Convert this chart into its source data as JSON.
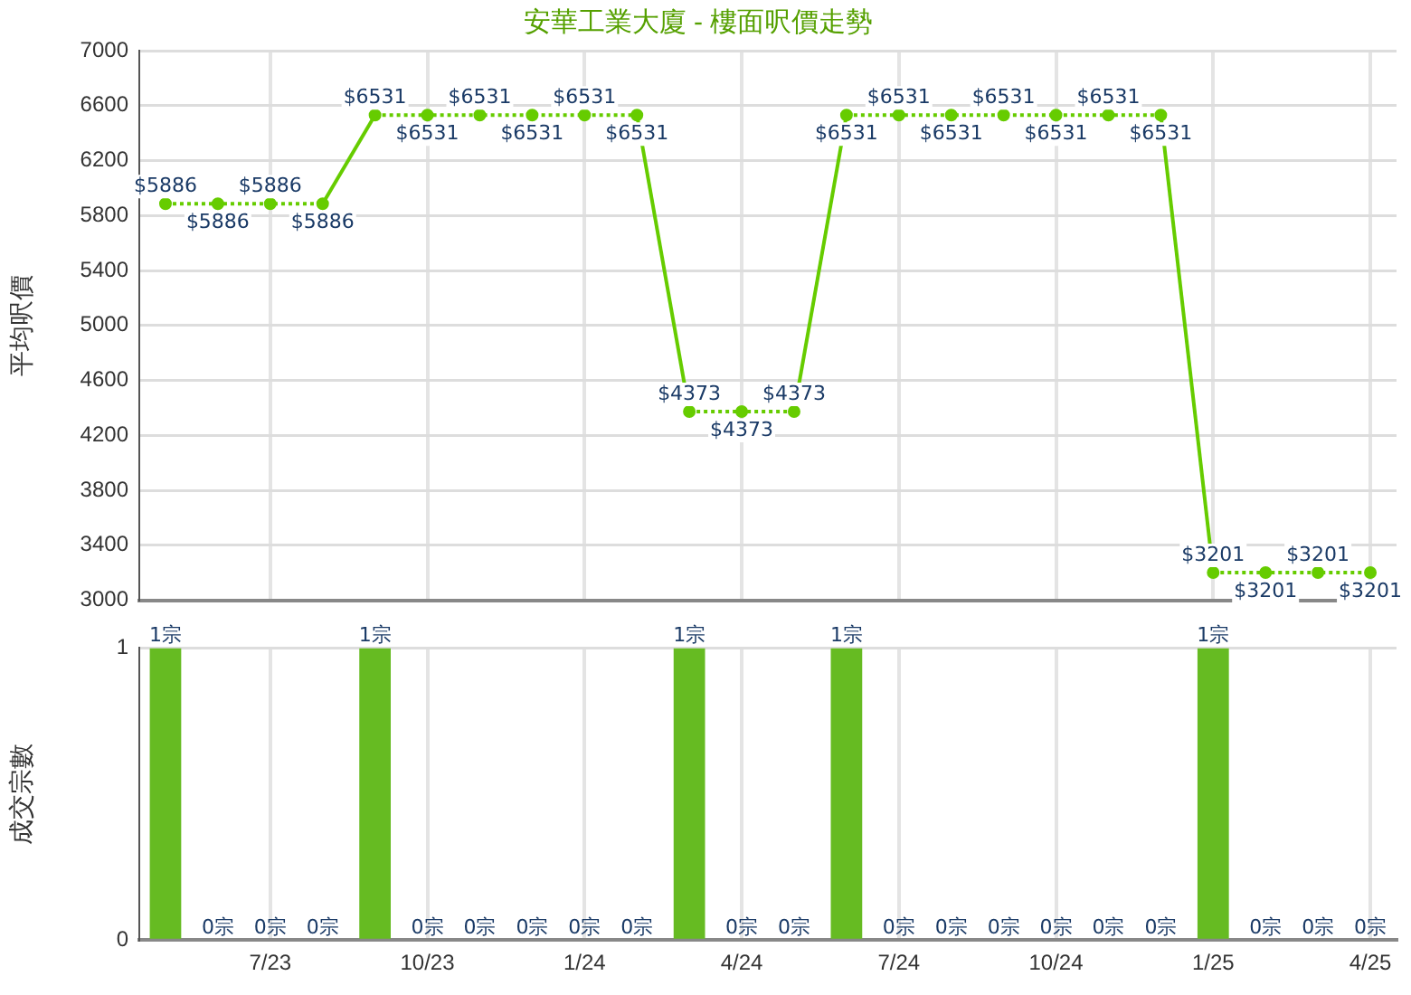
{
  "chart_data": [
    {
      "type": "line",
      "title": "安華工業大廈 - 樓面呎價走勢",
      "ylabel": "平均呎價",
      "categories": [
        null,
        null,
        null,
        null,
        null,
        null,
        null,
        null,
        null,
        null,
        null,
        null,
        null,
        null,
        null,
        null,
        null,
        null,
        null,
        null,
        null,
        null,
        null,
        null
      ],
      "series": [
        {
          "color": "#66cc00",
          "values": [
            5886,
            5886,
            5886,
            5886,
            6531,
            6531,
            6531,
            6531,
            6531,
            6531,
            4373,
            4373,
            4373,
            6531,
            6531,
            6531,
            6531,
            6531,
            6531,
            6531,
            3201,
            3201,
            3201,
            3201
          ],
          "value_labels": [
            "$5886",
            "$5886",
            "$5886",
            "$5886",
            "$6531",
            "$6531",
            "$6531",
            "$6531",
            "$6531",
            "$6531",
            "$4373",
            "$4373",
            "$4373",
            "$6531",
            "$6531",
            "$6531",
            "$6531",
            "$6531",
            "$6531",
            "$6531",
            "$3201",
            "$3201",
            "$3201",
            "$3201"
          ]
        }
      ],
      "ylim": [
        3000,
        7000
      ],
      "yticks": [
        3000,
        3400,
        3800,
        4200,
        4600,
        5000,
        5400,
        5800,
        6200,
        6600,
        7000
      ],
      "grid": true,
      "legend": false,
      "marker": "circle",
      "tick_labels": "y"
    },
    {
      "type": "bar",
      "ylabel": "成交宗數",
      "categories": [
        null,
        null,
        "7/23",
        null,
        null,
        "10/23",
        null,
        null,
        "1/24",
        null,
        null,
        "4/24",
        null,
        null,
        "7/24",
        null,
        null,
        "10/24",
        null,
        null,
        "1/25",
        null,
        null,
        "4/25"
      ],
      "series": [
        {
          "color": "#66bb22",
          "values": [
            1,
            0,
            0,
            0,
            1,
            0,
            0,
            0,
            0,
            0,
            1,
            0,
            0,
            1,
            0,
            0,
            0,
            0,
            0,
            0,
            1,
            0,
            0,
            0
          ],
          "value_labels": [
            "1宗",
            "0宗",
            "0宗",
            "0宗",
            "1宗",
            "0宗",
            "0宗",
            "0宗",
            "0宗",
            "0宗",
            "1宗",
            "0宗",
            "0宗",
            "1宗",
            "0宗",
            "0宗",
            "0宗",
            "0宗",
            "0宗",
            "0宗",
            "1宗",
            "0宗",
            "0宗",
            "0宗"
          ]
        }
      ],
      "ylim": [
        0,
        1
      ],
      "yticks": [
        0,
        1
      ],
      "grid": true,
      "legend": false
    }
  ]
}
